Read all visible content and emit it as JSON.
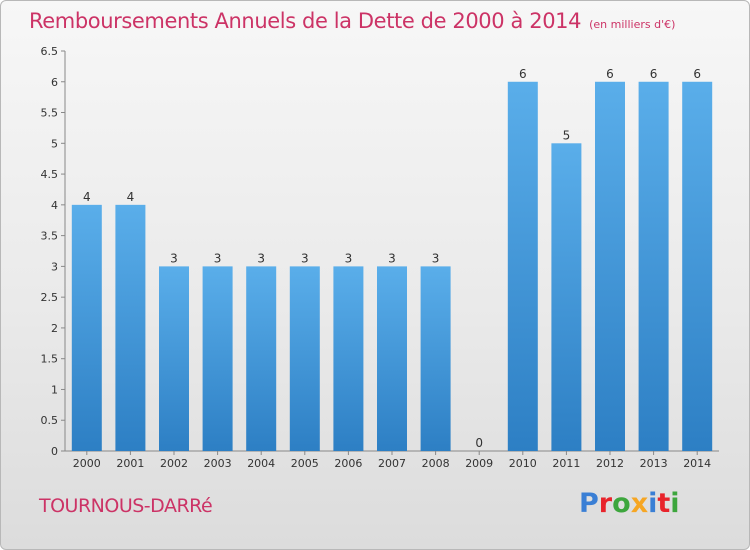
{
  "header": {
    "title": "Remboursements Annuels de la Dette de 2000 à 2014",
    "unit": "(en milliers d'€)"
  },
  "footer": {
    "city": "TOURNOUS-DARRé",
    "brand": "Proxiti",
    "brand_colors": [
      "#3a7fd5",
      "#e8232b",
      "#3da63d",
      "#f6a623",
      "#3a7fd5",
      "#e8232b",
      "#3da63d"
    ]
  },
  "chart_data": {
    "type": "bar",
    "title": "Remboursements Annuels de la Dette de 2000 à 2014",
    "subtitle": "(en milliers d'€)",
    "categories": [
      "2000",
      "2001",
      "2002",
      "2003",
      "2004",
      "2005",
      "2006",
      "2007",
      "2008",
      "2009",
      "2010",
      "2011",
      "2012",
      "2013",
      "2014"
    ],
    "values": [
      4,
      4,
      3,
      3,
      3,
      3,
      3,
      3,
      3,
      0,
      6,
      5,
      6,
      6,
      6
    ],
    "value_labels": [
      "4",
      "4",
      "3",
      "3",
      "3",
      "3",
      "3",
      "3",
      "3",
      "0",
      "6",
      "5",
      "6",
      "6",
      "6"
    ],
    "ylim": [
      0,
      6.5
    ],
    "yticks": [
      0,
      0.5,
      1,
      1.5,
      2,
      2.5,
      3,
      3.5,
      4,
      4.5,
      5,
      5.5,
      6,
      6.5
    ],
    "ytick_labels": [
      "0",
      "0.5",
      "1",
      "1.5",
      "2",
      "2.5",
      "3",
      "3.5",
      "4",
      "4.5",
      "5",
      "5.5",
      "6",
      "6.5"
    ],
    "grid": false,
    "colors": {
      "bar_light": "#5aaeea",
      "bar_dark": "#2d7fc4",
      "label": "#333333",
      "axis": "#888888"
    }
  }
}
